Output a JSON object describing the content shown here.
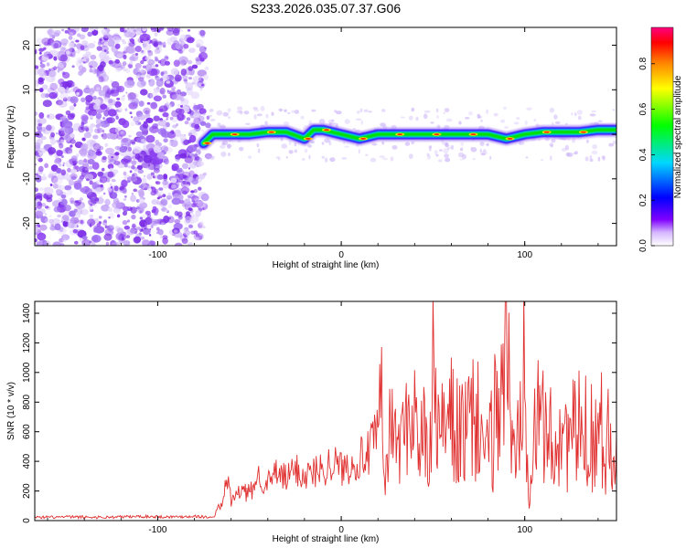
{
  "figure_title": "S233.2026.035.07.37.G06",
  "colors": {
    "snr_line": "#e03030",
    "spectrogram_noise": "#8a3df0",
    "colormap": [
      "#ffffff",
      "#7f00ff",
      "#0000ff",
      "#00d8ff",
      "#00ff00",
      "#ffff00",
      "#ff8000",
      "#ff0000",
      "#ff0080"
    ]
  },
  "chart_data": [
    {
      "type": "heatmap",
      "title": "",
      "xlabel": "Height of straight line (km)",
      "ylabel": "Frequency (Hz)",
      "xlim": [
        -167,
        150
      ],
      "ylim": [
        -25,
        24
      ],
      "xticks": [
        -100,
        0,
        100
      ],
      "xtick_labels": [
        "-100",
        "0",
        "100"
      ],
      "yticks": [
        -20,
        -10,
        0,
        10,
        20
      ],
      "ytick_labels": [
        "-20",
        "-10",
        "0",
        "10",
        "20"
      ],
      "grid": false,
      "description_noise_region_x": [
        -167,
        -75
      ],
      "ridge_x_start": -75,
      "ridge": [
        {
          "x": -75,
          "y": -2
        },
        {
          "x": -70,
          "y": 0
        },
        {
          "x": -60,
          "y": 0
        },
        {
          "x": -50,
          "y": 0
        },
        {
          "x": -40,
          "y": 0.5
        },
        {
          "x": -30,
          "y": 0.5
        },
        {
          "x": -20,
          "y": -1
        },
        {
          "x": -15,
          "y": 1
        },
        {
          "x": -10,
          "y": 1
        },
        {
          "x": 0,
          "y": 0
        },
        {
          "x": 10,
          "y": -1
        },
        {
          "x": 20,
          "y": 0
        },
        {
          "x": 30,
          "y": 0
        },
        {
          "x": 40,
          "y": 0
        },
        {
          "x": 50,
          "y": 0
        },
        {
          "x": 60,
          "y": 0
        },
        {
          "x": 70,
          "y": 0
        },
        {
          "x": 80,
          "y": 0
        },
        {
          "x": 90,
          "y": -1
        },
        {
          "x": 100,
          "y": 0
        },
        {
          "x": 110,
          "y": 0.5
        },
        {
          "x": 120,
          "y": 0.5
        },
        {
          "x": 130,
          "y": 0.5
        },
        {
          "x": 140,
          "y": 1
        },
        {
          "x": 150,
          "y": 1
        }
      ],
      "colorbar": {
        "label": "Normalized spectral amplitude",
        "range": [
          0,
          0.96
        ],
        "ticks": [
          0,
          0.2,
          0.4,
          0.6,
          0.8
        ],
        "tick_labels": [
          "0.0",
          "0.2",
          "0.4",
          "0.6",
          "0.8"
        ]
      }
    },
    {
      "type": "line",
      "title": "",
      "xlabel": "Height of straight line (km)",
      "ylabel": "SNR (10 * v/v)",
      "xlim": [
        -167,
        150
      ],
      "ylim": [
        0,
        1480
      ],
      "xticks": [
        -100,
        0,
        100
      ],
      "xtick_labels": [
        "-100",
        "0",
        "100"
      ],
      "yticks": [
        0,
        200,
        400,
        600,
        800,
        1000,
        1200,
        1400
      ],
      "ytick_labels": [
        "0",
        "200",
        "400",
        "600",
        "800",
        "1000",
        "1200",
        "1400"
      ],
      "grid": false,
      "series": [
        {
          "x": [
            -167,
            -150,
            -130,
            -110,
            -90,
            -80,
            -70,
            -65,
            -62,
            -60,
            -55,
            -50,
            -45,
            -40,
            -35,
            -30,
            -25,
            -20,
            -15,
            -10,
            -5,
            0,
            5,
            10,
            15,
            20,
            22,
            24,
            26,
            30,
            35,
            40,
            42,
            45,
            48,
            50,
            52,
            55,
            60,
            65,
            70,
            75,
            80,
            85,
            90,
            95,
            98,
            100,
            102,
            105,
            110,
            115,
            120,
            125,
            130,
            135,
            140,
            145,
            150
          ],
          "y": [
            20,
            25,
            22,
            28,
            25,
            30,
            20,
            120,
            280,
            130,
            200,
            180,
            300,
            250,
            320,
            280,
            350,
            300,
            330,
            350,
            400,
            350,
            380,
            420,
            450,
            600,
            800,
            200,
            650,
            520,
            600,
            800,
            450,
            620,
            300,
            1000,
            600,
            620,
            650,
            580,
            620,
            700,
            400,
            800,
            1130,
            300,
            1000,
            1480,
            200,
            600,
            700,
            500,
            620,
            560,
            600,
            580,
            620,
            560,
            600
          ]
        }
      ]
    }
  ]
}
